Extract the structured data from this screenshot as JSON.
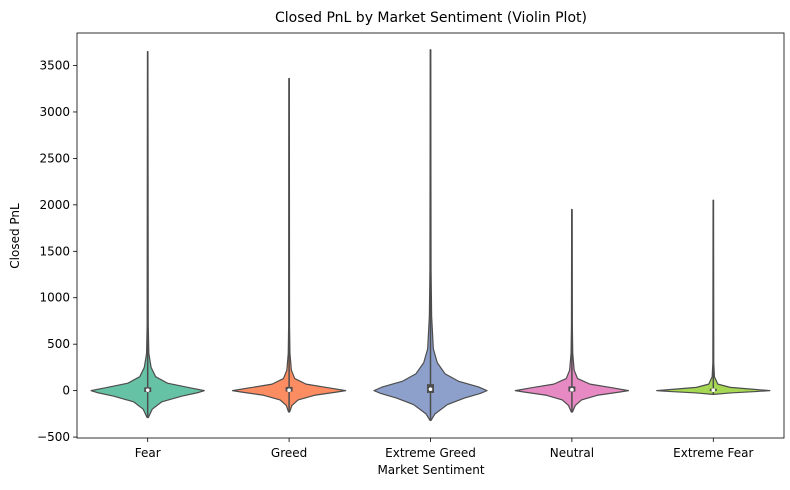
{
  "chart_data": {
    "type": "violin",
    "title": "Closed PnL by Market Sentiment (Violin Plot)",
    "xlabel": "Market Sentiment",
    "ylabel": "Closed PnL",
    "ylim": [
      -510,
      3850
    ],
    "yticks": [
      -500,
      0,
      500,
      1000,
      1500,
      2000,
      2500,
      3000,
      3500
    ],
    "ytick_labels": [
      "−500",
      "0",
      "500",
      "1000",
      "1500",
      "2000",
      "2500",
      "3000",
      "3500"
    ],
    "grid": false,
    "legend": "none",
    "categories": [
      "Fear",
      "Greed",
      "Extreme Greed",
      "Neutral",
      "Extreme Fear"
    ],
    "series": [
      {
        "category": "Fear",
        "color": "#66c2a5",
        "min": -290,
        "max": 3650,
        "q1": -15,
        "median": 5,
        "q3": 35,
        "profile": [
          [
            -290,
            0.01
          ],
          [
            -200,
            0.08
          ],
          [
            -120,
            0.25
          ],
          [
            -60,
            0.6
          ],
          [
            -20,
            0.9
          ],
          [
            0,
            1.0
          ],
          [
            30,
            0.75
          ],
          [
            80,
            0.35
          ],
          [
            150,
            0.14
          ],
          [
            250,
            0.06
          ],
          [
            400,
            0.02
          ],
          [
            700,
            0.01
          ],
          [
            3650,
            0.004
          ]
        ]
      },
      {
        "category": "Greed",
        "color": "#fc8d62",
        "min": -230,
        "max": 3360,
        "q1": -10,
        "median": 5,
        "q3": 40,
        "profile": [
          [
            -230,
            0.01
          ],
          [
            -160,
            0.05
          ],
          [
            -100,
            0.16
          ],
          [
            -50,
            0.45
          ],
          [
            -15,
            0.85
          ],
          [
            0,
            1.0
          ],
          [
            30,
            0.7
          ],
          [
            70,
            0.3
          ],
          [
            130,
            0.1
          ],
          [
            220,
            0.04
          ],
          [
            400,
            0.015
          ],
          [
            700,
            0.008
          ],
          [
            3360,
            0.004
          ]
        ]
      },
      {
        "category": "Extreme Greed",
        "color": "#8da0cb",
        "min": -320,
        "max": 3670,
        "q1": -25,
        "median": 15,
        "q3": 70,
        "profile": [
          [
            -320,
            0.01
          ],
          [
            -250,
            0.08
          ],
          [
            -150,
            0.3
          ],
          [
            -80,
            0.6
          ],
          [
            -30,
            0.88
          ],
          [
            0,
            1.0
          ],
          [
            40,
            0.85
          ],
          [
            100,
            0.5
          ],
          [
            180,
            0.26
          ],
          [
            300,
            0.12
          ],
          [
            450,
            0.05
          ],
          [
            800,
            0.02
          ],
          [
            1300,
            0.01
          ],
          [
            3670,
            0.004
          ]
        ]
      },
      {
        "category": "Neutral",
        "color": "#e78ac3",
        "min": -230,
        "max": 1950,
        "q1": -10,
        "median": 10,
        "q3": 45,
        "profile": [
          [
            -230,
            0.01
          ],
          [
            -160,
            0.06
          ],
          [
            -100,
            0.17
          ],
          [
            -50,
            0.45
          ],
          [
            -15,
            0.85
          ],
          [
            0,
            1.0
          ],
          [
            30,
            0.72
          ],
          [
            70,
            0.32
          ],
          [
            130,
            0.1
          ],
          [
            220,
            0.04
          ],
          [
            400,
            0.015
          ],
          [
            700,
            0.008
          ],
          [
            1950,
            0.004
          ]
        ]
      },
      {
        "category": "Extreme Fear",
        "color": "#a6d854",
        "min": -40,
        "max": 2050,
        "q1": -5,
        "median": 5,
        "q3": 20,
        "profile": [
          [
            -40,
            0.01
          ],
          [
            -25,
            0.3
          ],
          [
            -10,
            0.75
          ],
          [
            0,
            1.0
          ],
          [
            15,
            0.7
          ],
          [
            35,
            0.3
          ],
          [
            70,
            0.08
          ],
          [
            150,
            0.02
          ],
          [
            300,
            0.008
          ],
          [
            2050,
            0.004
          ]
        ]
      }
    ]
  }
}
